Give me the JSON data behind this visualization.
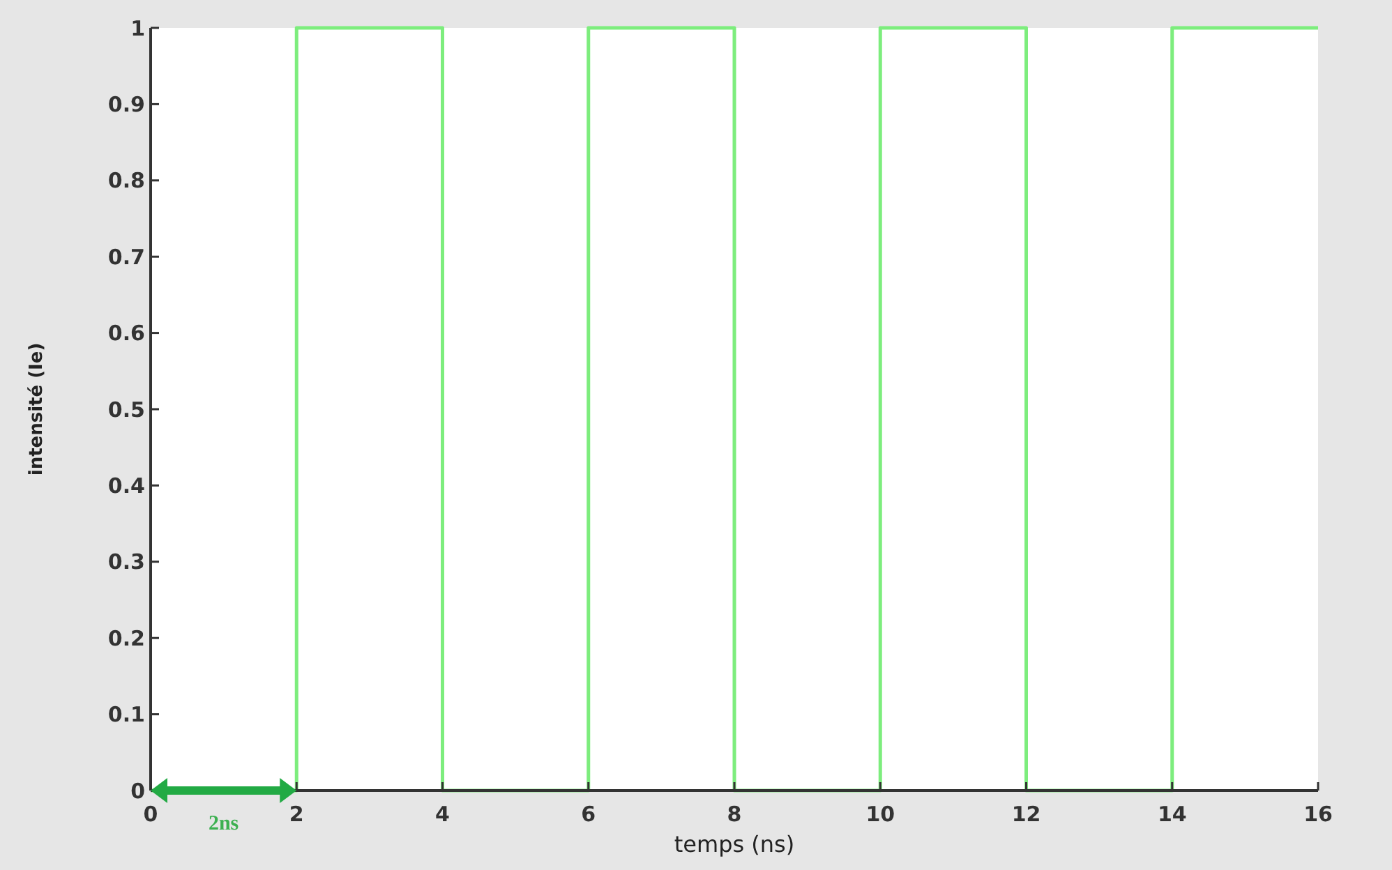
{
  "chart_data": {
    "type": "step",
    "xlabel": "temps (ns)",
    "ylabel": "intensité (Ie)",
    "x": [
      0,
      2,
      4,
      6,
      8,
      10,
      12,
      14,
      16
    ],
    "series": [
      {
        "color": "#7ded7d",
        "values": [
          0,
          1,
          0,
          1,
          0,
          1,
          0,
          1,
          1
        ]
      }
    ],
    "xlim": [
      0,
      16
    ],
    "xticks": [
      0,
      2,
      4,
      6,
      8,
      10,
      12,
      14,
      16
    ],
    "ylim": [
      0,
      1
    ],
    "yticks": [
      0,
      0.1,
      0.2,
      0.3,
      0.4,
      0.5,
      0.6,
      0.7,
      0.8,
      0.9,
      1
    ],
    "annotations": [
      {
        "text": "2ns",
        "x": 1,
        "y": 0
      }
    ]
  }
}
